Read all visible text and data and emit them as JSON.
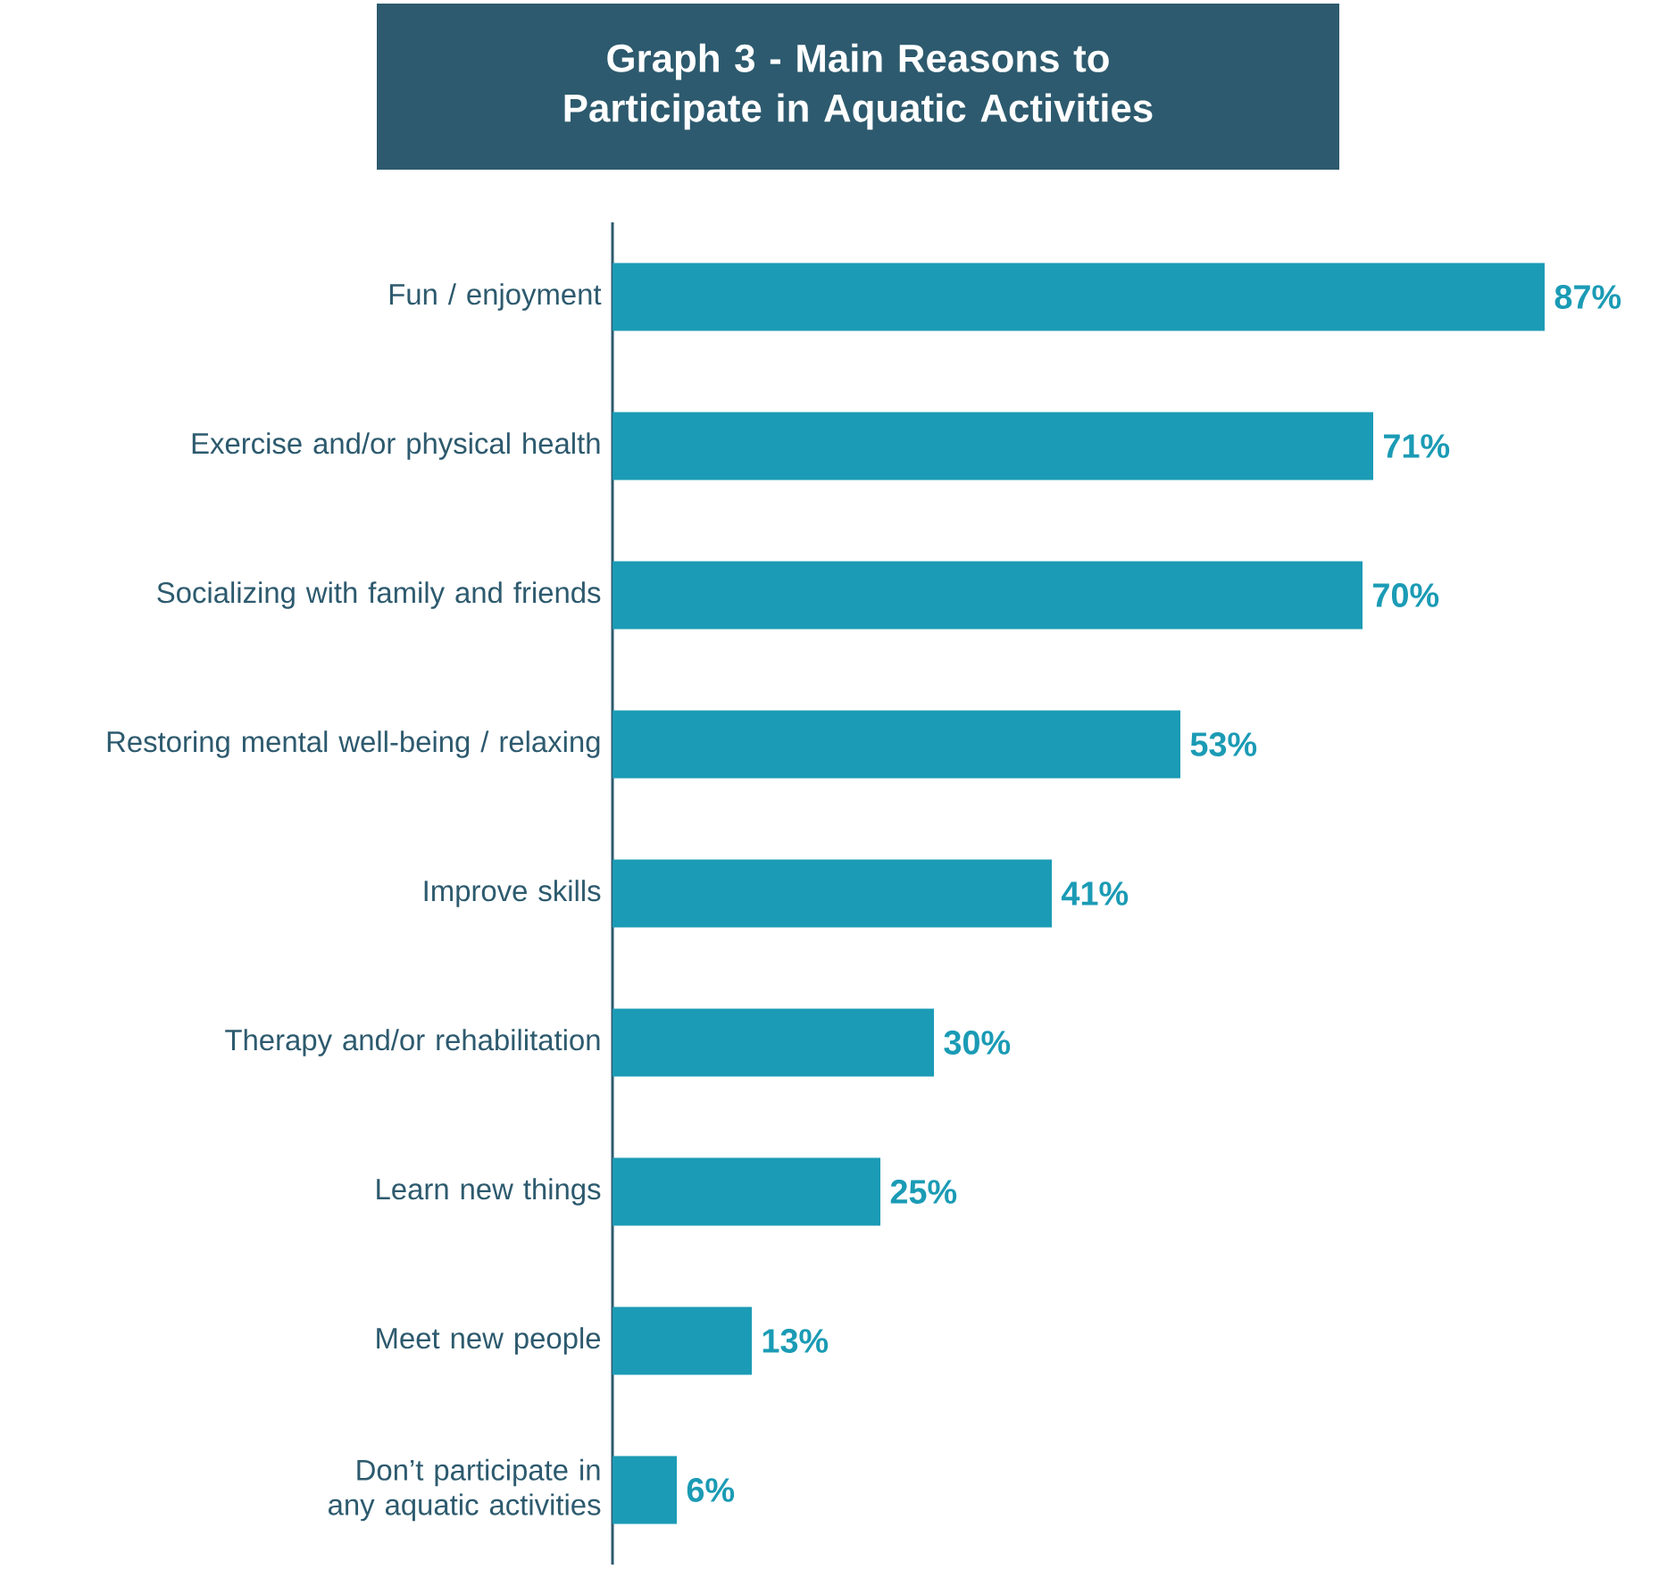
{
  "chart_data": {
    "type": "bar",
    "orientation": "horizontal",
    "title": "Graph 3 - Main Reasons to Participate in Aquatic Activities",
    "categories": [
      "Fun / enjoyment",
      "Exercise and/or physical health",
      "Socializing with family and friends",
      "Restoring mental well-being / relaxing",
      "Improve skills",
      "Therapy and/or rehabilitation",
      "Learn new things",
      "Meet new people",
      "Don’t participate in any aquatic activities"
    ],
    "values": [
      87,
      71,
      70,
      53,
      41,
      30,
      25,
      13,
      6
    ],
    "value_labels": [
      "87%",
      "71%",
      "70%",
      "53%",
      "41%",
      "30%",
      "25%",
      "13%",
      "6%"
    ],
    "color": "#1b9bb5"
  }
}
